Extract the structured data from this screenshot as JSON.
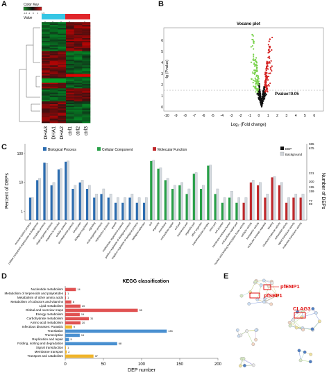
{
  "panels": {
    "a": "A",
    "b": "B",
    "c": "C",
    "d": "D",
    "e": "E"
  },
  "panel_a": {
    "color_key_label": "Color Key",
    "value_label": "Value",
    "key_ticks": [
      "-1.5",
      "-1",
      "0",
      "1",
      "1.5"
    ],
    "columns": [
      "DHA3",
      "DHA1",
      "DHA2",
      "ctrl1",
      "ctrl2",
      "ctrl3"
    ],
    "group_colors": [
      "#36c6e4",
      "#e0262b"
    ],
    "low_color": "#1e8f2a",
    "high_color": "#d21a1a"
  },
  "panel_b": {
    "title": "Vocano plot",
    "xlabel": "Log₂ (Fold change)",
    "ylabel": "-lg (Pvalue)",
    "annotation": "Pvalue=0.05",
    "x_ticks": [
      "-10",
      "-9",
      "-8",
      "-7",
      "-6",
      "-5",
      "-4",
      "-3",
      "-2",
      "-1",
      "0",
      "1",
      "2",
      "3",
      "4",
      "5",
      "6"
    ],
    "y_ticks": [
      "0",
      "1",
      "2",
      "3",
      "4",
      "5",
      "6"
    ]
  },
  "panel_c": {
    "ylabel_left": "Percent of DEPs",
    "ylabel_right": "Number of DEPs",
    "legend_categories": [
      "Biological Process",
      "Cellular Component",
      "Molecular Function"
    ],
    "legend_sets": [
      "DEP",
      "Background"
    ],
    "left_ticks": [
      "1",
      "10",
      "100"
    ],
    "right_ticks_top": [
      "365",
      "675"
    ],
    "right_ticks": [
      "231",
      "300",
      "155",
      "159",
      "77",
      "69"
    ],
    "colors": {
      "bp": "#2b6cb0",
      "cc": "#27a047",
      "mf": "#c0282b",
      "dep": "#111111",
      "bg": "#cfd3d8"
    },
    "categories": [
      "immune system process",
      "cellular component organization or biogenesis",
      "metabolic process",
      "single-organism process",
      "response to stimulus",
      "cellular process",
      "developmental process",
      "localization",
      "biological regulation",
      "signaling",
      "multi-organism process",
      "reproductive process",
      "growth",
      "multicellular organismal process",
      "positive regulation of biological process",
      "negative regulation of biological process",
      "biological adhesion",
      "cell",
      "organelle",
      "membrane",
      "extracellular region",
      "cell part",
      "membrane part",
      "organelle part",
      "other organism",
      "macromolecular complex",
      "virion part",
      "cell junction",
      "membrane-enclosed lumen",
      "extracellular region part",
      "nucleic acid binding transcription factor activity",
      "catalytic activity",
      "transporter activity",
      "molecular function regulator",
      "binding",
      "structural molecule activity",
      "antioxidant activity",
      "signal transducer activity",
      "molecular transducer activity"
    ],
    "chart_data": {
      "type": "bar",
      "scale": "log",
      "ylim": [
        0.5,
        100
      ],
      "series_names": [
        "DEP",
        "Background"
      ],
      "groups": [
        {
          "name": "Biological Process",
          "color_key": "bp",
          "start": 0,
          "end": 17
        },
        {
          "name": "Cellular Component",
          "color_key": "cc",
          "start": 17,
          "end": 30
        },
        {
          "name": "Molecular Function",
          "color_key": "mf",
          "start": 30,
          "end": 39
        }
      ],
      "dep": [
        3,
        12,
        48,
        8,
        28,
        52,
        6,
        10,
        6,
        3,
        4,
        3,
        2,
        2,
        3,
        2,
        2,
        55,
        30,
        12,
        6,
        8,
        4,
        20,
        6,
        38,
        4,
        2,
        3,
        2,
        2,
        10,
        8,
        3,
        15,
        8,
        2,
        3,
        3
      ],
      "background": [
        3,
        14,
        46,
        10,
        30,
        55,
        8,
        12,
        8,
        4,
        6,
        4,
        3,
        3,
        4,
        3,
        3,
        58,
        32,
        14,
        8,
        10,
        6,
        22,
        8,
        40,
        6,
        3,
        5,
        3,
        3,
        12,
        10,
        4,
        16,
        10,
        3,
        4,
        4
      ]
    }
  },
  "panel_d": {
    "title": "KEGG classification",
    "xlabel": "DEP number",
    "x_ticks": [
      "0",
      "50",
      "100",
      "150",
      "200"
    ],
    "colors": {
      "metabolism": "#e05252",
      "genetic": "#4a90d0",
      "environmental": "#f0b429"
    },
    "chart_data": {
      "type": "bar",
      "orientation": "horizontal",
      "xlim": [
        0,
        200
      ],
      "categories": [
        "Nucleotide metabolism",
        "Metabolism of terpenoids and polyketides",
        "Metabolism of other amino acids",
        "Metabolism of cofactors and vitamins",
        "Lipid metabolism",
        "Global and overview maps",
        "Energy metabolism",
        "Carbohydrate metabolism",
        "Amino acid metabolism",
        "Infectious diseases: Parasitic",
        "Translation",
        "Transcription",
        "Replication and repair",
        "Folding, sorting and degradation",
        "Signal transduction",
        "Membrane transport",
        "Transport and catabolism"
      ],
      "values": [
        14,
        1,
        1,
        8,
        20,
        95,
        19,
        31,
        20,
        9,
        133,
        19,
        5,
        68,
        1,
        2,
        37
      ],
      "color_keys": [
        "metabolism",
        "metabolism",
        "metabolism",
        "metabolism",
        "metabolism",
        "metabolism",
        "metabolism",
        "metabolism",
        "metabolism",
        "environmental",
        "genetic",
        "genetic",
        "genetic",
        "genetic",
        "environmental",
        "environmental",
        "environmental"
      ]
    }
  },
  "panel_e": {
    "labels": [
      "pfEMP1",
      "pfSBP1",
      "CLAG3"
    ],
    "label_color": "#e01010"
  }
}
